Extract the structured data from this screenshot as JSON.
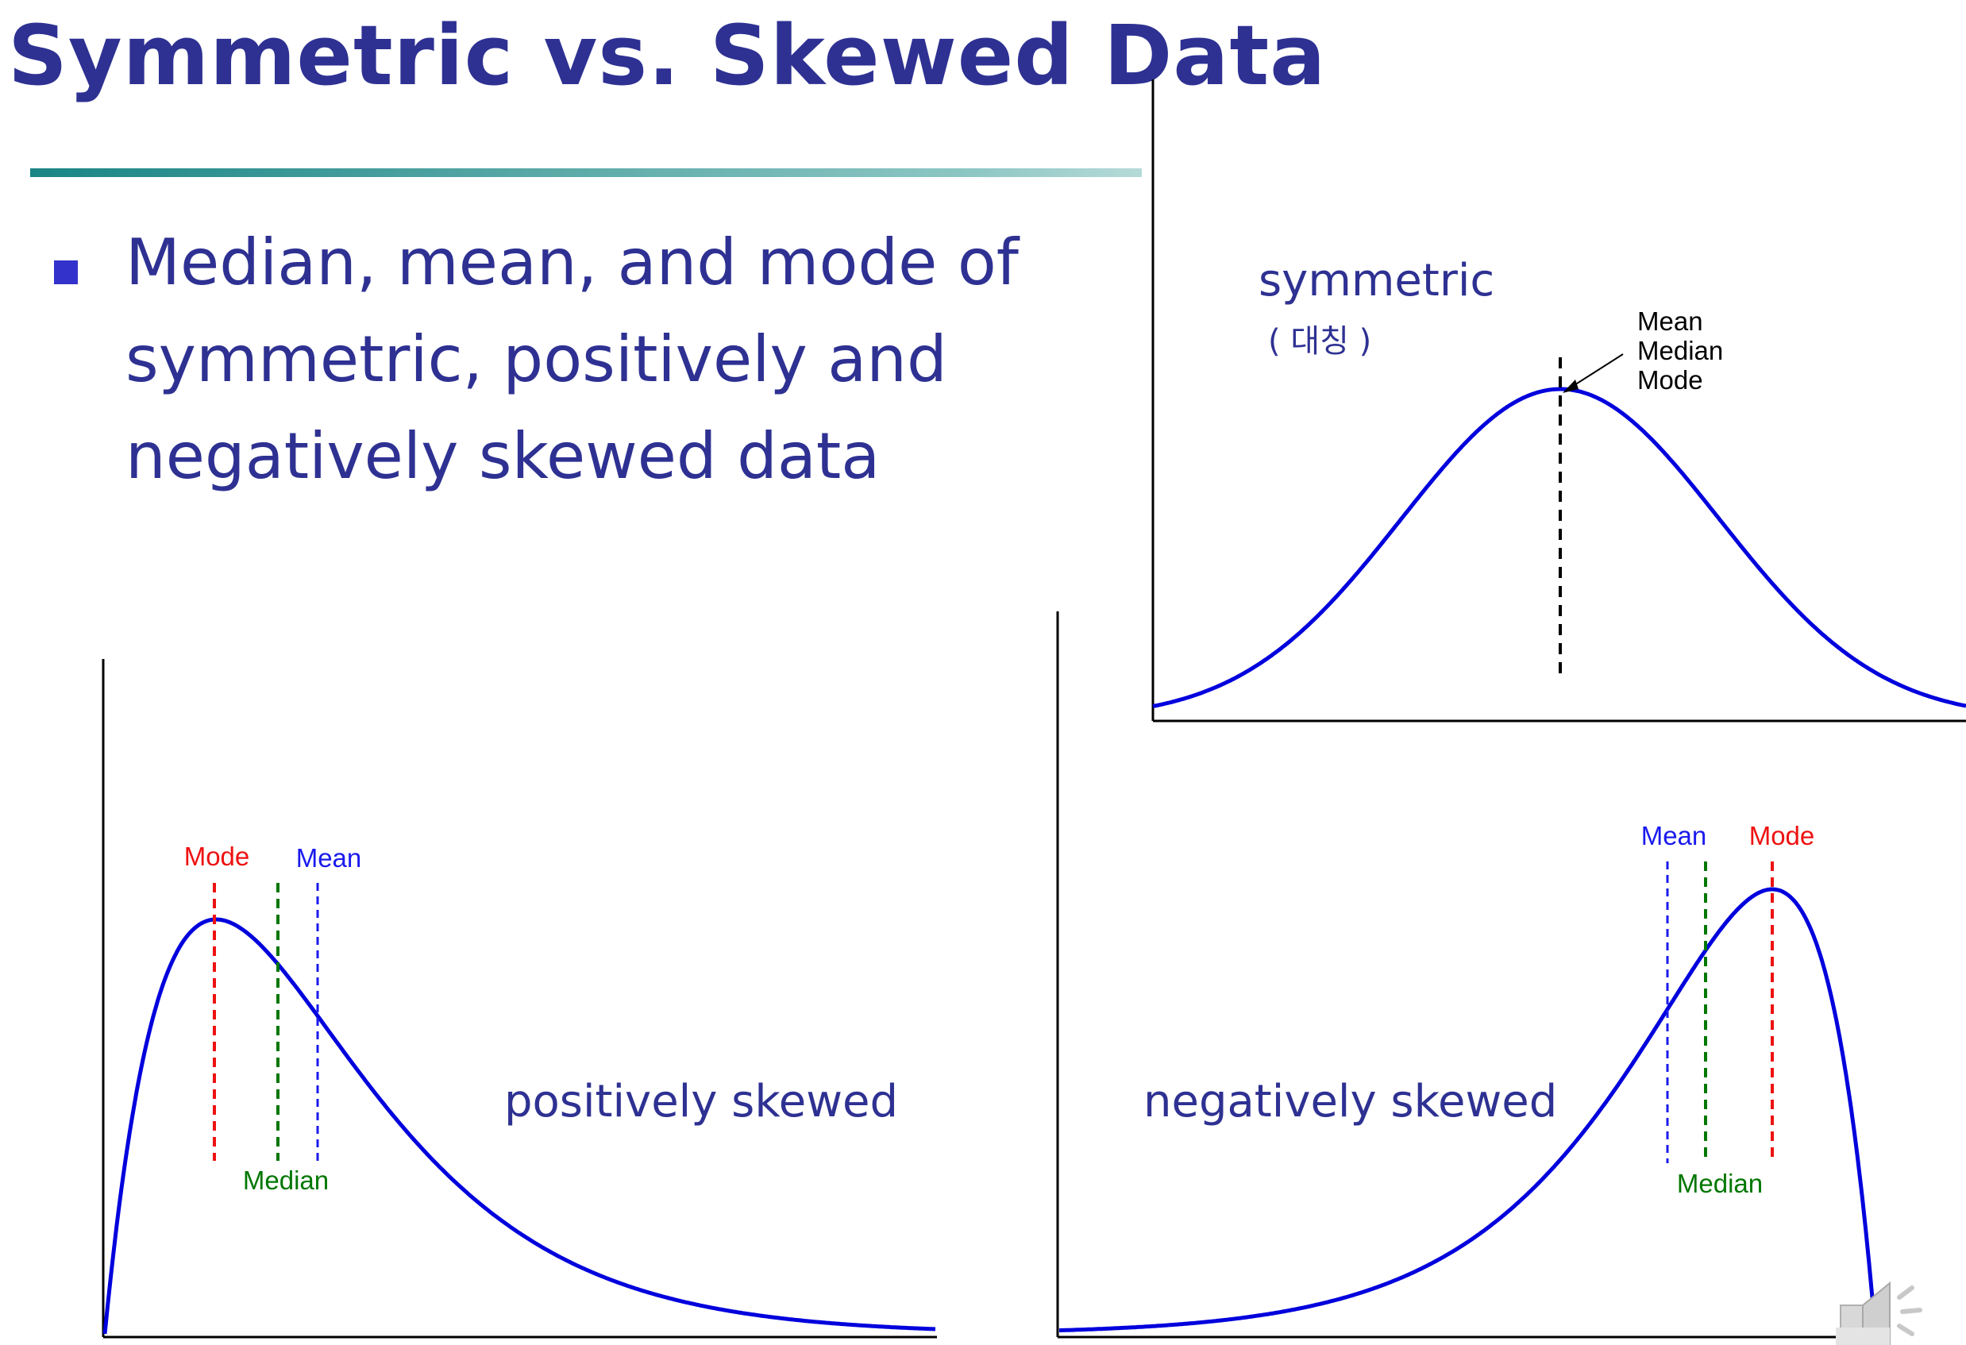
{
  "title": "Symmetric vs. Skewed Data",
  "bullet": {
    "icon": "square-bullet-icon",
    "text": "Median, mean, and mode of symmetric, positively and negatively skewed data"
  },
  "symmetric": {
    "caption": "symmetric",
    "handwritten_note": "( 대칭 )",
    "stack_labels": {
      "line1": "Mean",
      "line2": "Median",
      "line3": "Mode"
    }
  },
  "positively_skewed": {
    "caption": "positively skewed",
    "mode_label": "Mode",
    "median_label": "Median",
    "mean_label": "Mean"
  },
  "negatively_skewed": {
    "caption": "negatively skewed",
    "mean_label": "Mean",
    "mode_label": "Mode",
    "median_label": "Median"
  },
  "colors": {
    "text": "#2e3192",
    "curve": "#0000dd",
    "mode": "#ee1111",
    "median": "#007700",
    "mean": "#1a1aee"
  },
  "icons": [
    "square-bullet-icon",
    "speaker-icon"
  ]
}
